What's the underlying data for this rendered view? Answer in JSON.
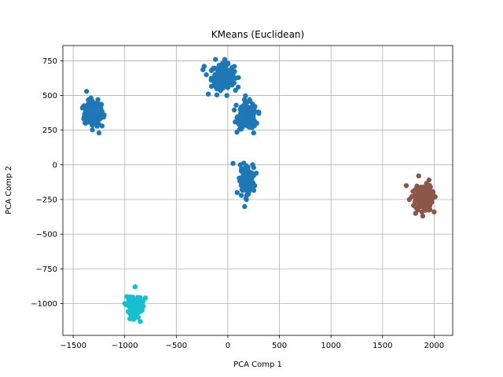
{
  "chart_data": {
    "type": "scatter",
    "title": "KMeans (Euclidean)",
    "xlabel": "PCA Comp 1",
    "ylabel": "PCA Comp 2",
    "xlim": [
      -1600,
      2180
    ],
    "ylim": [
      -1230,
      860
    ],
    "grid": true,
    "xticks": [
      -1500,
      -1000,
      -500,
      0,
      500,
      1000,
      1500,
      2000
    ],
    "yticks": [
      -1000,
      -750,
      -500,
      -250,
      0,
      250,
      500,
      750
    ],
    "xtick_labels": [
      "−1500",
      "−1000",
      "−500",
      "0",
      "500",
      "1000",
      "1500",
      "2000"
    ],
    "ytick_labels": [
      "−1000",
      "−750",
      "−500",
      "−250",
      "0",
      "250",
      "500",
      "750"
    ],
    "colors": {
      "blue": "#1f77b4",
      "brown": "#8c564b",
      "cyan": "#17becf"
    },
    "clusters": [
      {
        "color": "#1f77b4",
        "center": [
          -1300,
          370
        ],
        "spread": [
          45,
          45
        ],
        "points": [
          [
            -1370,
            530
          ],
          [
            -1250,
            230
          ],
          [
            -1410,
            410
          ],
          [
            -1200,
            360
          ],
          [
            -1330,
            460
          ],
          [
            -1380,
            300
          ],
          [
            -1260,
            470
          ],
          [
            -1220,
            280
          ]
        ]
      },
      {
        "color": "#1f77b4",
        "center": [
          -50,
          640
        ],
        "spread": [
          55,
          40
        ],
        "points": [
          [
            -230,
            710
          ],
          [
            -120,
            760
          ],
          [
            -30,
            760
          ],
          [
            -190,
            510
          ],
          [
            -10,
            500
          ],
          [
            60,
            590
          ],
          [
            -160,
            680
          ],
          [
            40,
            700
          ]
        ]
      },
      {
        "color": "#1f77b4",
        "center": [
          190,
          350
        ],
        "spread": [
          45,
          45
        ],
        "points": [
          [
            80,
            430
          ],
          [
            250,
            230
          ],
          [
            300,
            370
          ],
          [
            110,
            290
          ],
          [
            280,
            300
          ],
          [
            160,
            470
          ],
          [
            210,
            470
          ]
        ]
      },
      {
        "color": "#1f77b4",
        "center": [
          180,
          -100
        ],
        "spread": [
          30,
          50
        ],
        "points": [
          [
            50,
            10
          ],
          [
            90,
            -200
          ],
          [
            250,
            -20
          ],
          [
            130,
            -220
          ],
          [
            180,
            -250
          ],
          [
            260,
            -150
          ],
          [
            120,
            0
          ],
          [
            230,
            -80
          ]
        ]
      },
      {
        "color": "#8c564b",
        "center": [
          1900,
          -240
        ],
        "spread": [
          40,
          45
        ],
        "points": [
          [
            1730,
            -150
          ],
          [
            1850,
            -80
          ],
          [
            1950,
            -110
          ],
          [
            1820,
            -350
          ],
          [
            1890,
            -370
          ],
          [
            2000,
            -340
          ],
          [
            2010,
            -230
          ],
          [
            1760,
            -250
          ]
        ]
      },
      {
        "color": "#17becf",
        "center": [
          -900,
          -1020
        ],
        "spread": [
          30,
          30
        ],
        "points": [
          [
            -1000,
            -1000
          ],
          [
            -900,
            -880
          ],
          [
            -820,
            -1020
          ],
          [
            -850,
            -1130
          ],
          [
            -950,
            -1110
          ],
          [
            -980,
            -950
          ],
          [
            -800,
            -960
          ],
          [
            -870,
            -1100
          ]
        ]
      }
    ]
  }
}
